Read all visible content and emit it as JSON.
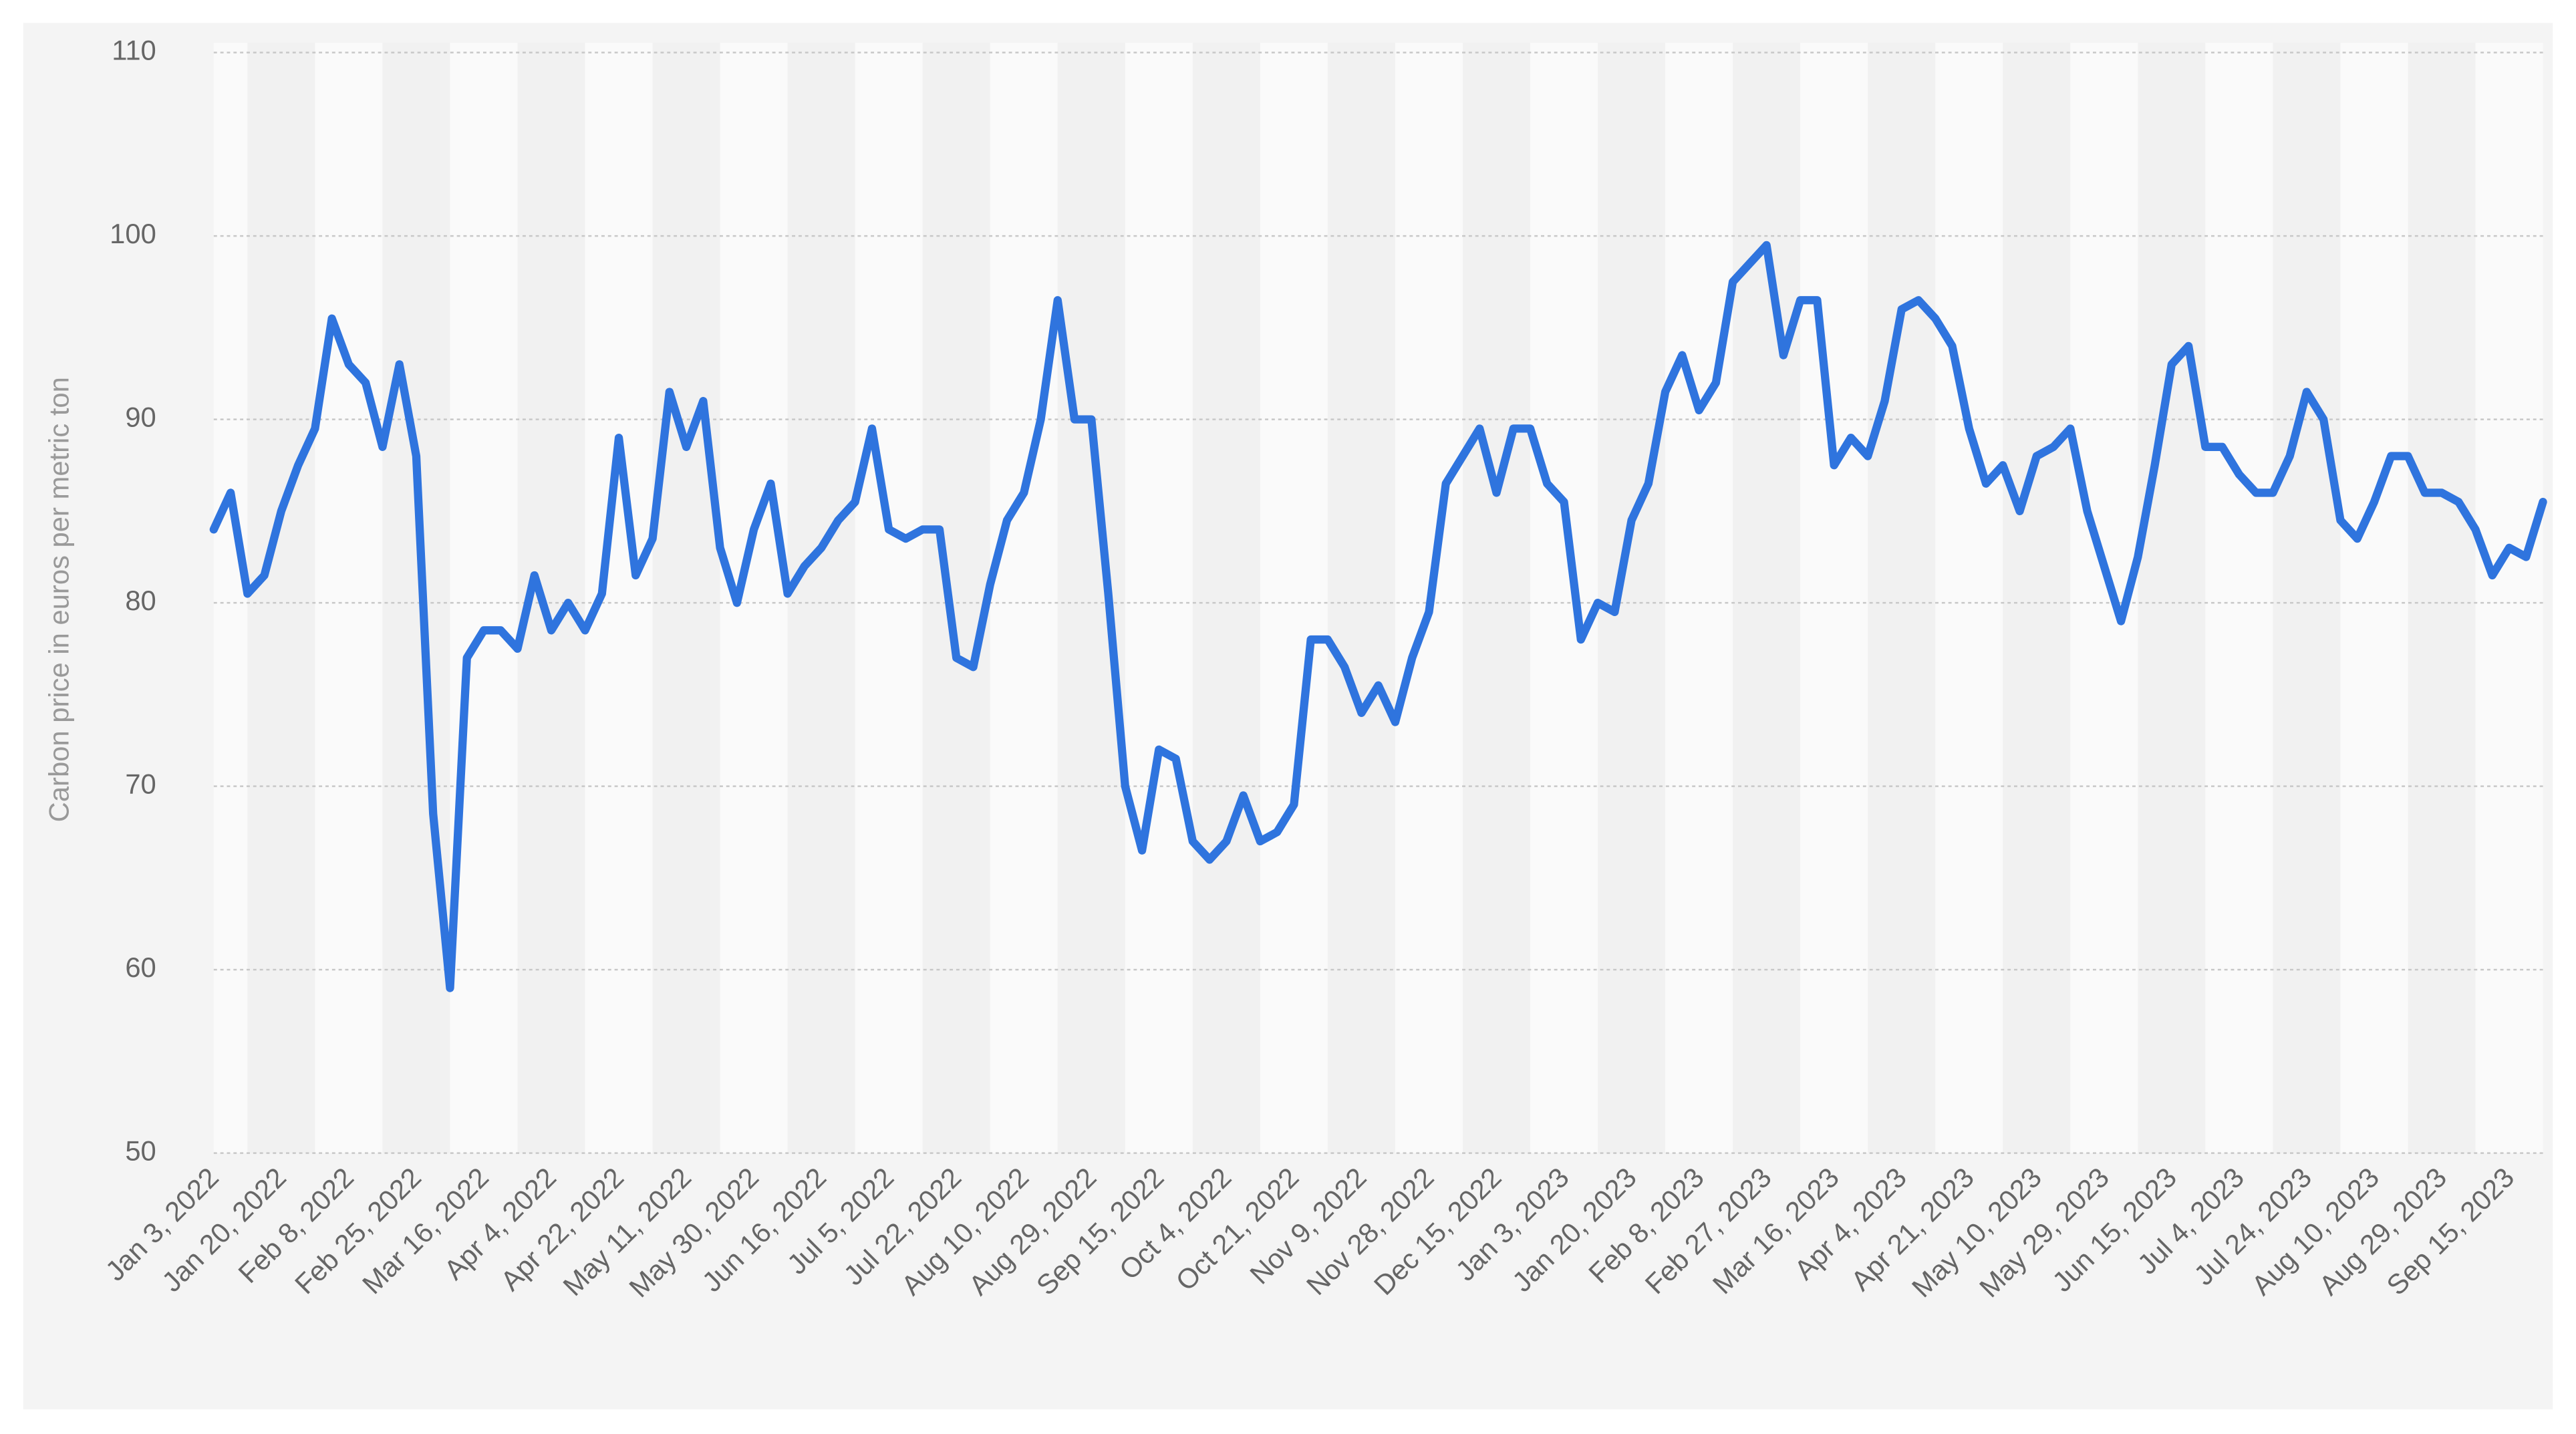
{
  "chart_data": {
    "type": "line",
    "y_label": "Carbon price in euros per metric ton",
    "color": "#2f74de",
    "categories": [
      "Jan 3, 2022",
      null,
      null,
      null,
      "Jan 20, 2022",
      null,
      null,
      null,
      "Feb 8, 2022",
      null,
      null,
      null,
      "Feb 25, 2022",
      null,
      null,
      null,
      "Mar 16, 2022",
      null,
      null,
      null,
      "Apr 4, 2022",
      null,
      null,
      null,
      "Apr 22, 2022",
      null,
      null,
      null,
      "May 11, 2022",
      null,
      null,
      null,
      "May 30, 2022",
      null,
      null,
      null,
      "Jun 16, 2022",
      null,
      null,
      null,
      "Jul 5, 2022",
      null,
      null,
      null,
      "Jul 22, 2022",
      null,
      null,
      null,
      "Aug 10, 2022",
      null,
      null,
      null,
      "Aug 29, 2022",
      null,
      null,
      null,
      "Sep 15, 2022",
      null,
      null,
      null,
      "Oct 4, 2022",
      null,
      null,
      null,
      "Oct 21, 2022",
      null,
      null,
      null,
      "Nov 9, 2022",
      null,
      null,
      null,
      "Nov 28, 2022",
      null,
      null,
      null,
      "Dec 15, 2022",
      null,
      null,
      null,
      "Jan 3, 2023",
      null,
      null,
      null,
      "Jan 20, 2023",
      null,
      null,
      null,
      "Feb 8, 2023",
      null,
      null,
      null,
      "Feb 27, 2023",
      null,
      null,
      null,
      "Mar 16, 2023",
      null,
      null,
      null,
      "Apr 4, 2023",
      null,
      null,
      null,
      "Apr 21, 2023",
      null,
      null,
      null,
      "May 10, 2023",
      null,
      null,
      null,
      "May 29, 2023",
      null,
      null,
      null,
      "Jun 15, 2023",
      null,
      null,
      null,
      "Jul 4, 2023",
      null,
      null,
      null,
      "Jul 24, 2023",
      null,
      null,
      null,
      "Aug 10, 2023",
      null,
      null,
      null,
      "Aug 29, 2023",
      null,
      null,
      null,
      "Sep 15, 2023",
      null,
      null
    ],
    "values": [
      84,
      86,
      80.5,
      81.5,
      85,
      87.5,
      89.5,
      95.5,
      93,
      92,
      88.5,
      93,
      88,
      68.5,
      59,
      77,
      78.5,
      78.5,
      77.5,
      81.5,
      78.5,
      80,
      78.5,
      80.5,
      89,
      81.5,
      83.5,
      91.5,
      88.5,
      91,
      83,
      80,
      84,
      86.5,
      80.5,
      82,
      83,
      84.5,
      85.5,
      89.5,
      84,
      83.5,
      84,
      84,
      77,
      76.5,
      81,
      84.5,
      86,
      90,
      96.5,
      90,
      90,
      80.5,
      70,
      66.5,
      72,
      71.5,
      67,
      66,
      67,
      69.5,
      67,
      67.5,
      69,
      78,
      78,
      76.5,
      74,
      75.5,
      73.5,
      77,
      79.5,
      86.5,
      88,
      89.5,
      86,
      89.5,
      89.5,
      86.5,
      85.5,
      78,
      80,
      79.5,
      84.5,
      86.5,
      91.5,
      93.5,
      90.5,
      92,
      97.5,
      98.5,
      99.5,
      93.5,
      96.5,
      96.5,
      87.5,
      89,
      88,
      91,
      96,
      96.5,
      95.5,
      94,
      89.5,
      86.5,
      87.5,
      85,
      88,
      88.5,
      89.5,
      85,
      82,
      79,
      82.5,
      87.5,
      93,
      94,
      88.5,
      88.5,
      87,
      86,
      86,
      88,
      91.5,
      90,
      84.5,
      83.5,
      85.5,
      88,
      88,
      86,
      86,
      85.5,
      84,
      81.5,
      83,
      82.5,
      85.5
    ],
    "ylim": [
      50,
      110
    ],
    "yticks": [
      50,
      60,
      70,
      80,
      90,
      100,
      110
    ],
    "grid": true
  }
}
